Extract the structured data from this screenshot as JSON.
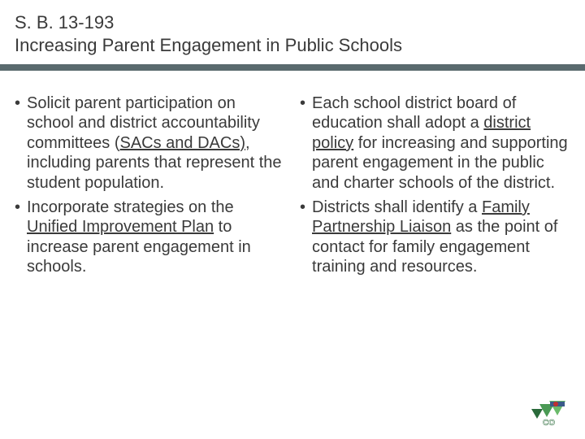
{
  "header": {
    "line1": "S. B. 13-193",
    "line2": "Increasing Parent Engagement in Public Schools"
  },
  "colors": {
    "accent_bar": "#5a6a6e",
    "text": "#3a3a3a",
    "logo_green_dark": "#2a6a3a",
    "logo_green_mid": "#4a9a54",
    "logo_green_light": "#6aba6a",
    "logo_blue": "#3a5a8a",
    "logo_red": "#c03030",
    "logo_white": "#ffffff"
  },
  "left_column": {
    "items": [
      {
        "segments": [
          {
            "text": "Solicit parent participation on school and district accountability committees (",
            "u": false
          },
          {
            "text": "SACs and DACs)",
            "u": true
          },
          {
            "text": ", including parents that represent the student population.",
            "u": false
          }
        ]
      },
      {
        "segments": [
          {
            "text": "Incorporate strategies on the ",
            "u": false
          },
          {
            "text": "Unified Improvement Plan",
            "u": true
          },
          {
            "text": " to increase parent engagement in schools.",
            "u": false
          }
        ]
      }
    ]
  },
  "right_column": {
    "items": [
      {
        "segments": [
          {
            "text": "Each school district board of education shall adopt a ",
            "u": false
          },
          {
            "text": "district policy",
            "u": true
          },
          {
            "text": " for increasing and supporting parent engagement in the public and charter schools of the district.",
            "u": false
          }
        ]
      },
      {
        "segments": [
          {
            "text": "Districts shall identify a ",
            "u": false
          },
          {
            "text": "Family Partnership Liaison",
            "u": true
          },
          {
            "text": " as the point of contact for family engagement training and resources.",
            "u": false
          }
        ]
      }
    ]
  },
  "logo": {
    "label": "CO",
    "aria": "Colorado state logo"
  }
}
